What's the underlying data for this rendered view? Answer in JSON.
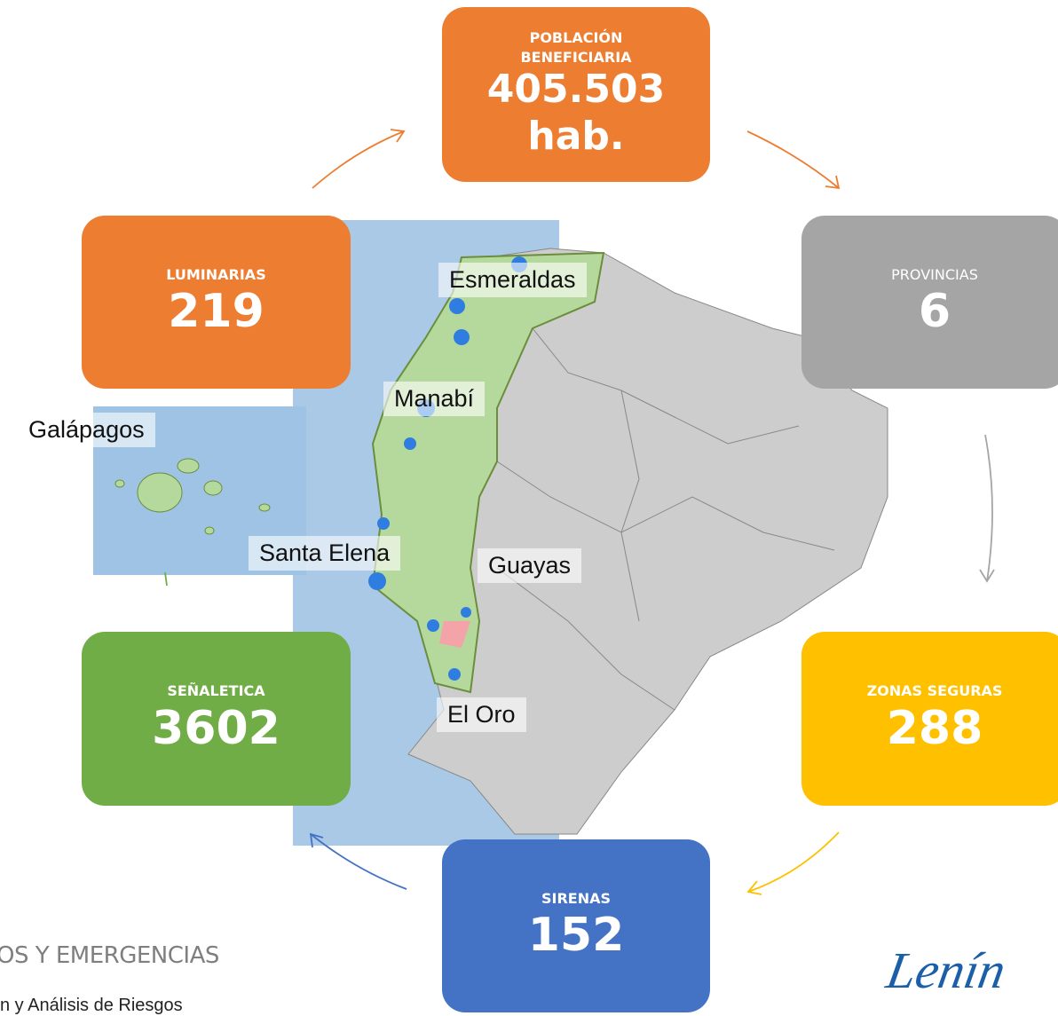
{
  "boxes": [
    {
      "title": "POBLACIÓN BENEFICIARIA",
      "value": "405.503",
      "unit": "hab."
    },
    {
      "title": "PROVINCIAS",
      "value": 6
    },
    {
      "title": "ZONAS SEGURAS",
      "value": 288
    },
    {
      "title": "SIRENAS",
      "value": 152
    },
    {
      "title": "SEÑALETICA",
      "value": 3602
    },
    {
      "title": "LUMINARIAS",
      "value": 219
    }
  ],
  "map_labels": [
    "Esmeraldas",
    "Manabí",
    "Galápagos",
    "Santa Elena",
    "Guayas",
    "El Oro"
  ],
  "footer": {
    "org": "OS Y EMERGENCIAS",
    "unit": "n y Análisis de Riesgos",
    "signature": "Lenín"
  }
}
